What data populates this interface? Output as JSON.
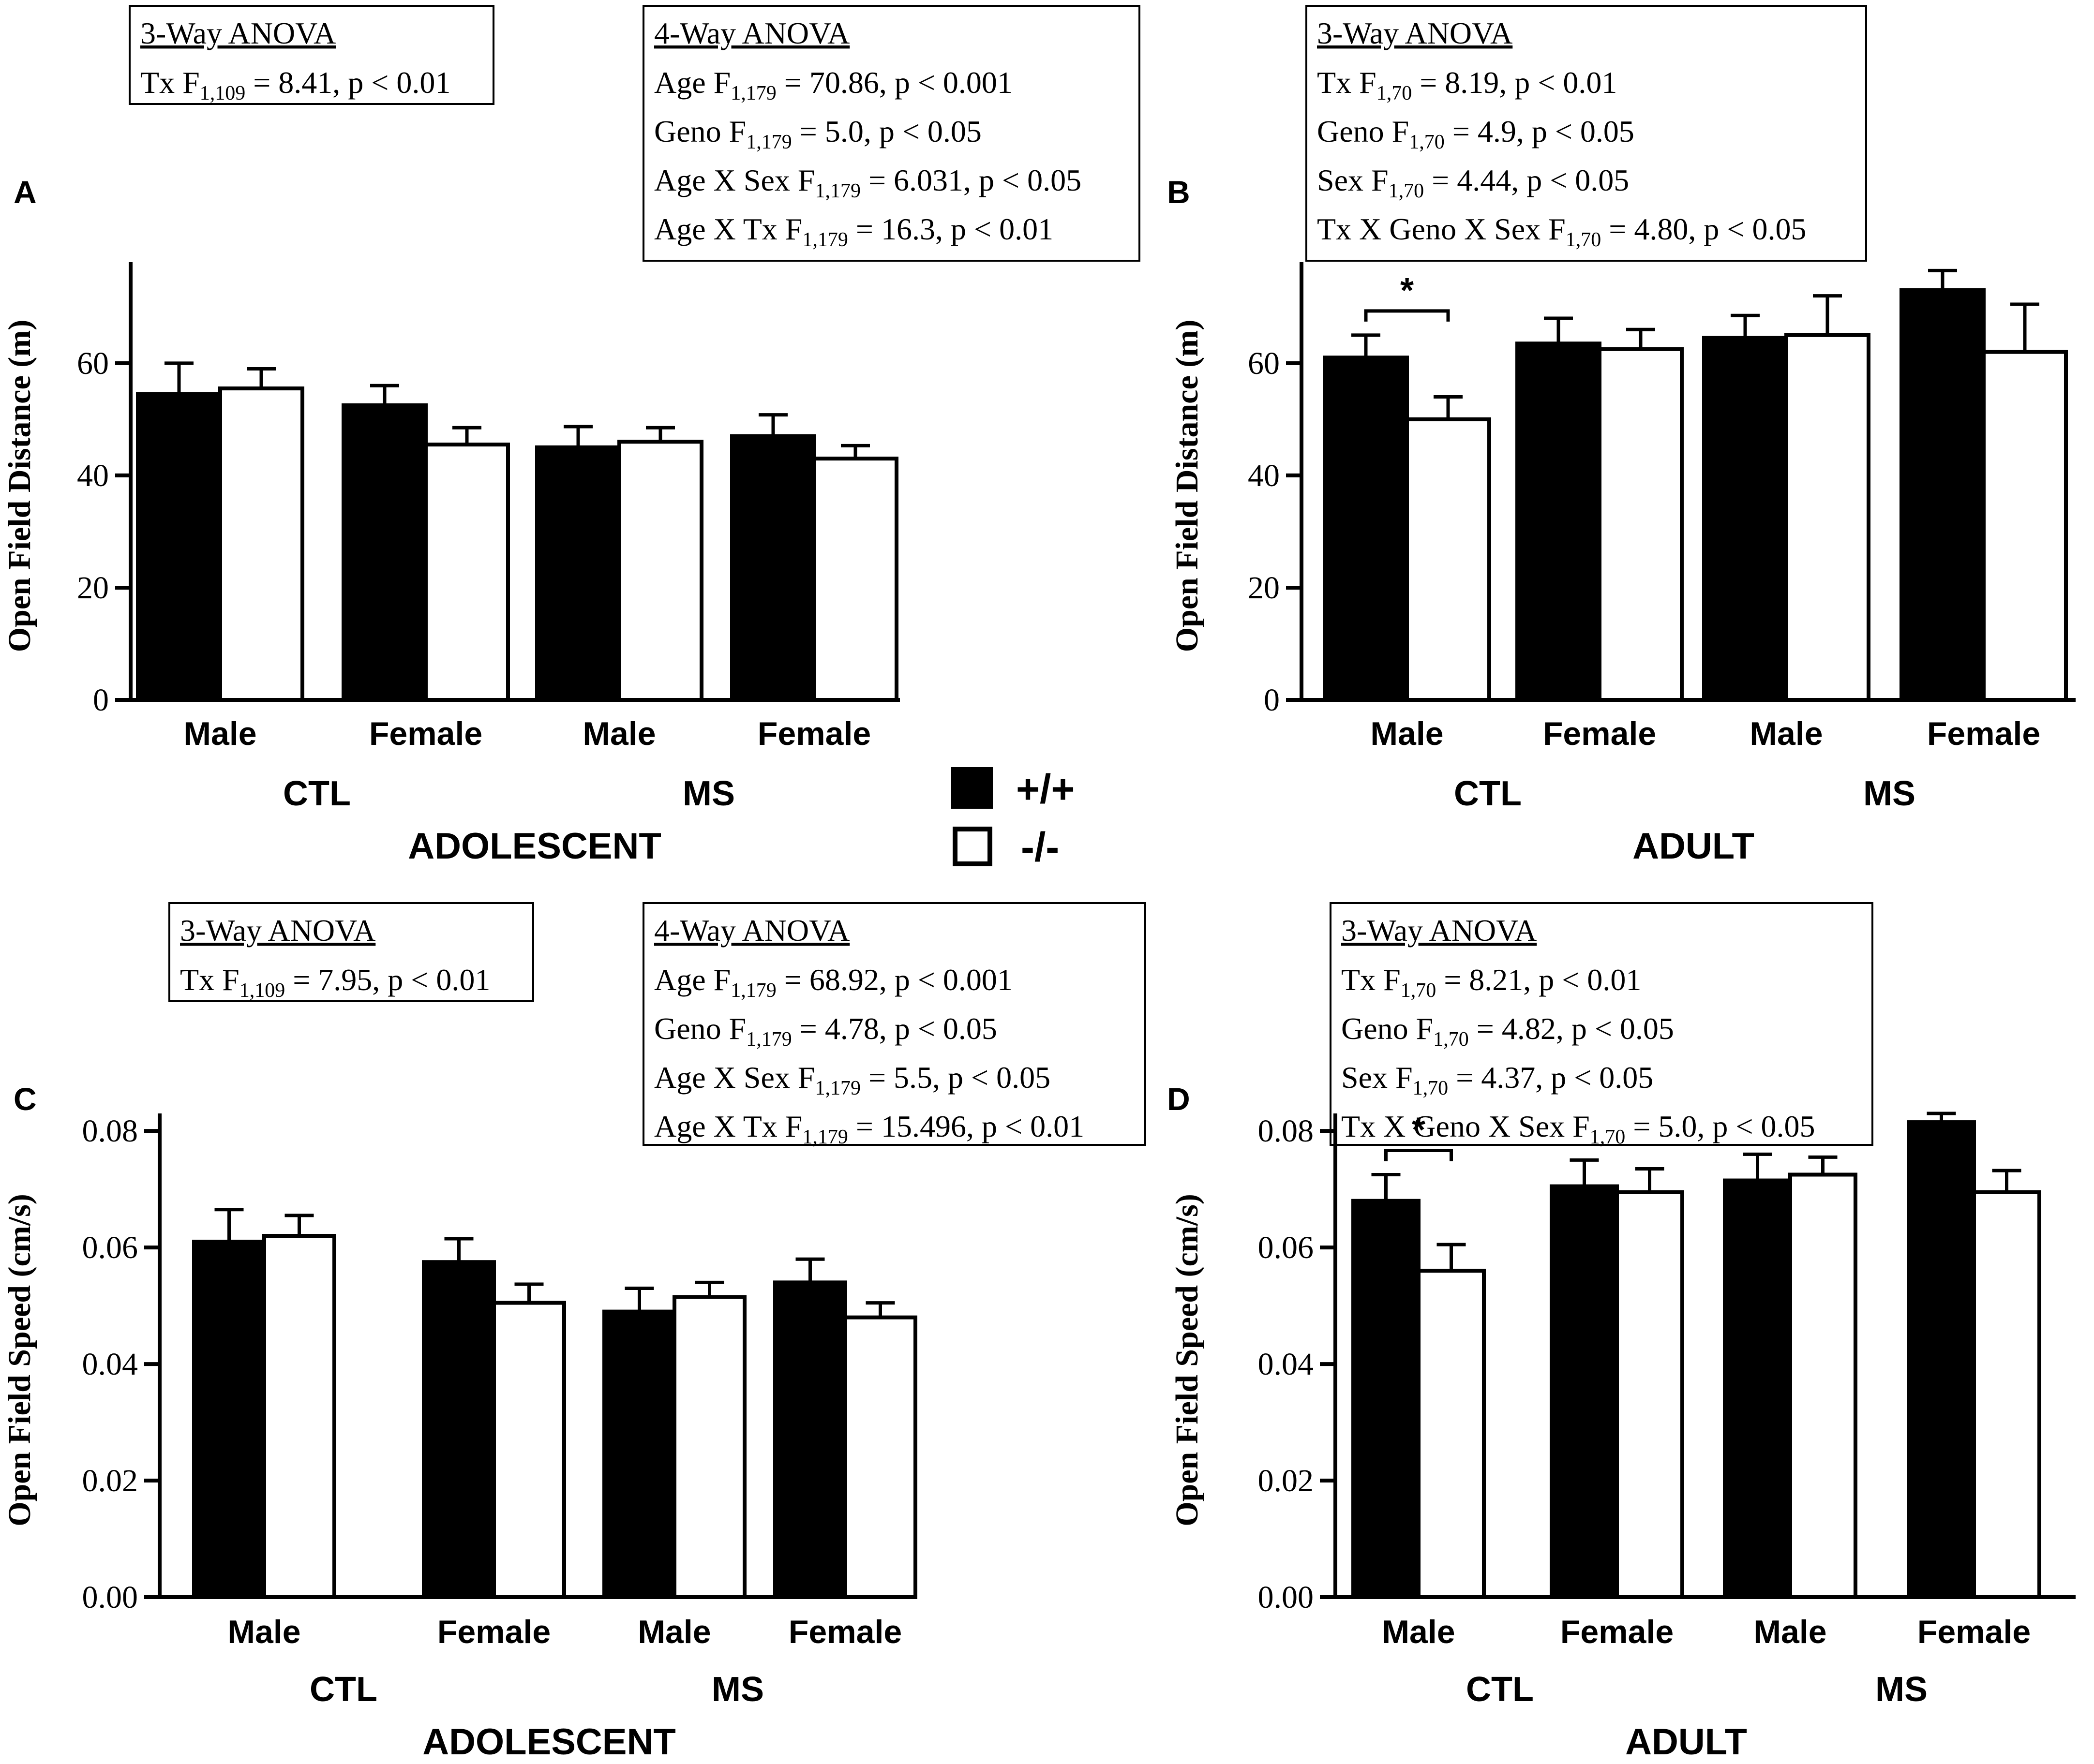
{
  "legend": {
    "wt": "+/+",
    "ko": "-/-"
  },
  "colors": {
    "wt_fill": "#000000",
    "ko_fill": "#ffffff",
    "stroke": "#000000"
  },
  "chart_data": [
    {
      "panel": "A",
      "type": "bar",
      "ylabel": "Open Field Distance (m)",
      "ylim": [
        0,
        78
      ],
      "yticks": [
        "0",
        "20",
        "40",
        "60"
      ],
      "ytick_values": [
        0,
        20,
        40,
        60
      ],
      "categories": [
        "Male",
        "Female",
        "Male",
        "Female"
      ],
      "groups": [
        "CTL",
        "MS"
      ],
      "xlabel": "ADOLESCENT",
      "series": [
        {
          "name": "+/+",
          "values": [
            54.5,
            52.5,
            45.0,
            47.0
          ],
          "errors": [
            5.5,
            3.5,
            3.7,
            3.8
          ]
        },
        {
          "name": "-/-",
          "values": [
            55.5,
            45.5,
            46.0,
            43.0
          ],
          "errors": [
            3.5,
            3.0,
            2.5,
            2.3
          ]
        }
      ],
      "significance": [],
      "stats": [
        {
          "title": "3-Way ANOVA",
          "lines": [
            {
              "pre": "Tx F",
              "sub": "1,109",
              "post": " = 8.41, p < 0.01"
            }
          ]
        },
        {
          "title": "4-Way ANOVA",
          "lines": [
            {
              "pre": "Age F",
              "sub": "1,179",
              "post": " = 70.86, p < 0.001"
            },
            {
              "pre": "Geno F",
              "sub": "1,179",
              "post": " = 5.0, p < 0.05"
            },
            {
              "pre": "Age X Sex F",
              "sub": "1,179",
              "post": " = 6.031, p < 0.05"
            },
            {
              "pre": "Age X Tx  F",
              "sub": "1,179",
              "post": " = 16.3, p < 0.01"
            }
          ]
        }
      ]
    },
    {
      "panel": "B",
      "type": "bar",
      "ylabel": "Open Field Distance (m)",
      "ylim": [
        0,
        78
      ],
      "yticks": [
        "0",
        "20",
        "40",
        "60"
      ],
      "ytick_values": [
        0,
        20,
        40,
        60
      ],
      "categories": [
        "Male",
        "Female",
        "Male",
        "Female"
      ],
      "groups": [
        "CTL",
        "MS"
      ],
      "xlabel": "ADULT",
      "series": [
        {
          "name": "+/+",
          "values": [
            61.0,
            63.5,
            64.5,
            73.0
          ],
          "errors": [
            4.0,
            4.5,
            4.0,
            3.5
          ]
        },
        {
          "name": "-/-",
          "values": [
            50.0,
            62.5,
            65.0,
            62.0
          ],
          "errors": [
            4.0,
            3.5,
            7.0,
            8.5
          ]
        }
      ],
      "significance": [
        {
          "group": 0,
          "label": "*"
        }
      ],
      "stats": [
        {
          "title": "3-Way ANOVA",
          "lines": [
            {
              "pre": "Tx F",
              "sub": "1,70",
              "post": " = 8.19, p < 0.01"
            },
            {
              "pre": "Geno F",
              "sub": "1,70",
              "post": " = 4.9, p < 0.05"
            },
            {
              "pre": "Sex F",
              "sub": "1,70",
              "post": " = 4.44, p < 0.05"
            },
            {
              "pre": "Tx X Geno X Sex F",
              "sub": "1,70",
              "post": " = 4.80, p < 0.05"
            }
          ]
        }
      ]
    },
    {
      "panel": "C",
      "type": "bar",
      "ylabel": "Open Field Speed (cm/s)",
      "ylim": [
        0,
        0.083
      ],
      "yticks": [
        "0.00",
        "0.02",
        "0.04",
        "0.06",
        "0.08"
      ],
      "ytick_values": [
        0,
        0.02,
        0.04,
        0.06,
        0.08
      ],
      "categories": [
        "Male",
        "Female",
        "Male",
        "Female"
      ],
      "groups": [
        "CTL",
        "MS"
      ],
      "xlabel": "ADOLESCENT",
      "series": [
        {
          "name": "+/+",
          "values": [
            0.061,
            0.0575,
            0.049,
            0.054
          ],
          "errors": [
            0.0055,
            0.004,
            0.004,
            0.004
          ]
        },
        {
          "name": "-/-",
          "values": [
            0.062,
            0.0505,
            0.0515,
            0.048
          ],
          "errors": [
            0.0035,
            0.0032,
            0.0025,
            0.0025
          ]
        }
      ],
      "significance": [],
      "stats": [
        {
          "title": "3-Way ANOVA",
          "lines": [
            {
              "pre": "Tx F",
              "sub": "1,109",
              "post": " = 7.95, p < 0.01"
            }
          ]
        },
        {
          "title": "4-Way ANOVA",
          "lines": [
            {
              "pre": "Age F",
              "sub": "1,179",
              "post": " = 68.92, p < 0.001"
            },
            {
              "pre": "Geno F",
              "sub": "1,179",
              "post": " = 4.78, p < 0.05"
            },
            {
              "pre": "Age X Sex F",
              "sub": "1,179",
              "post": " = 5.5, p < 0.05"
            },
            {
              "pre": "Age X Tx  F",
              "sub": "1,179",
              "post": " = 15.496, p < 0.01"
            }
          ]
        }
      ]
    },
    {
      "panel": "D",
      "type": "bar",
      "ylabel": "Open Field Speed (cm/s)",
      "ylim": [
        0,
        0.083
      ],
      "yticks": [
        "0.00",
        "0.02",
        "0.04",
        "0.06",
        "0.08"
      ],
      "ytick_values": [
        0,
        0.02,
        0.04,
        0.06,
        0.08
      ],
      "categories": [
        "Male",
        "Female",
        "Male",
        "Female"
      ],
      "groups": [
        "CTL",
        "MS"
      ],
      "xlabel": "ADULT",
      "series": [
        {
          "name": "+/+",
          "values": [
            0.068,
            0.0705,
            0.0715,
            0.0815
          ],
          "errors": [
            0.0045,
            0.0045,
            0.0045,
            0.0015
          ]
        },
        {
          "name": "-/-",
          "values": [
            0.056,
            0.0695,
            0.0725,
            0.0695
          ],
          "errors": [
            0.0045,
            0.004,
            0.003,
            0.0037
          ]
        }
      ],
      "significance": [
        {
          "group": 0,
          "label": "*"
        }
      ],
      "stats": [
        {
          "title": "3-Way ANOVA",
          "lines": [
            {
              "pre": "Tx F",
              "sub": "1,70",
              "post": " = 8.21, p < 0.01"
            },
            {
              "pre": "Geno F",
              "sub": "1,70",
              "post": " = 4.82, p < 0.05"
            },
            {
              "pre": "Sex F",
              "sub": "1,70",
              "post": " = 4.37, p < 0.05"
            },
            {
              "pre": "Tx X Geno X Sex F",
              "sub": "1,70",
              "post": " = 5.0, p < 0.05"
            }
          ]
        }
      ]
    }
  ]
}
